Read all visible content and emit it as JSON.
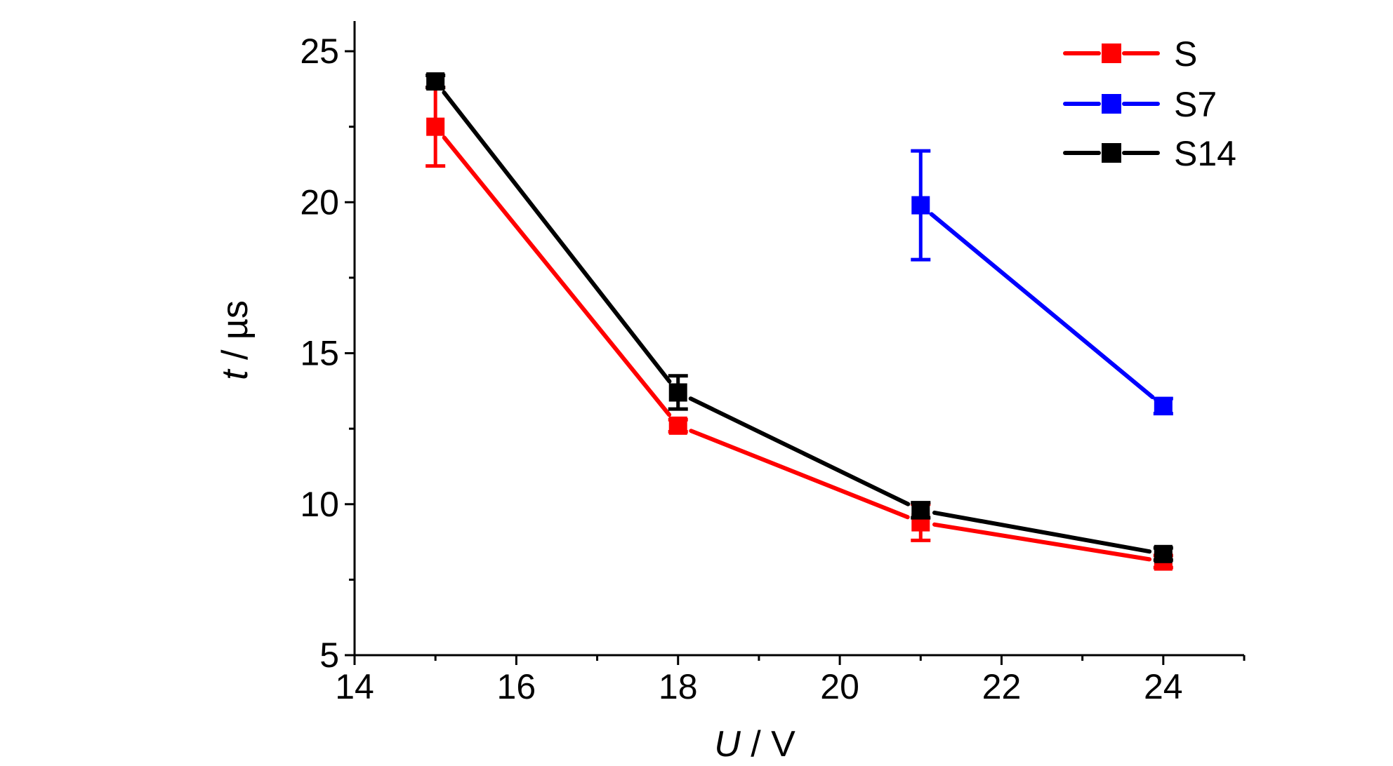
{
  "chart_data": {
    "type": "line",
    "title": "",
    "xlabel": {
      "var": "U",
      "sep": " / ",
      "unit": "V"
    },
    "ylabel": {
      "var": "t",
      "sep": " / ",
      "unit": "µs"
    },
    "xlim": [
      14,
      25
    ],
    "ylim": [
      5,
      26
    ],
    "xticks": [
      14,
      16,
      18,
      20,
      22,
      24
    ],
    "xtick_labels": [
      "14",
      "16",
      "18",
      "20",
      "22",
      "24"
    ],
    "xminor": [
      15,
      17,
      19,
      21,
      23,
      25
    ],
    "yticks": [
      5,
      10,
      15,
      20,
      25
    ],
    "ytick_labels": [
      "5",
      "10",
      "15",
      "20",
      "25"
    ],
    "yminor": [
      7.5,
      12.5,
      17.5,
      22.5
    ],
    "grid": false,
    "legend_position": "top-right",
    "marker": "square",
    "series": [
      {
        "name": "S",
        "color": "#ff0000",
        "x": [
          15,
          18,
          21,
          24
        ],
        "y": [
          22.5,
          12.6,
          9.4,
          8.1
        ],
        "err": [
          1.3,
          0.2,
          0.6,
          0.2
        ]
      },
      {
        "name": "S7",
        "color": "#0000ff",
        "x": [
          21,
          24
        ],
        "y": [
          19.9,
          13.25
        ],
        "err": [
          1.8,
          0.25
        ]
      },
      {
        "name": "S14",
        "color": "#000000",
        "x": [
          15,
          18,
          21,
          24
        ],
        "y": [
          24.0,
          13.7,
          9.8,
          8.35
        ],
        "err": [
          0.2,
          0.55,
          0.25,
          0.2
        ]
      }
    ]
  }
}
